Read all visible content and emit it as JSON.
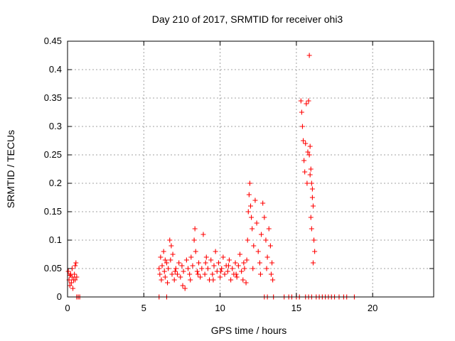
{
  "chart_data": {
    "type": "scatter",
    "title": "Day 210 of 2017, SRMTID for receiver ohi3",
    "xlabel": "GPS time / hours",
    "ylabel": "SRMTID / TECUs",
    "xlim": [
      0,
      24
    ],
    "ylim": [
      0,
      0.45
    ],
    "xticks": [
      0,
      5,
      10,
      15,
      20
    ],
    "xtick_labels": [
      "0",
      "5",
      "10",
      "15",
      "20"
    ],
    "yticks": [
      0,
      0.05,
      0.1,
      0.15,
      0.2,
      0.25,
      0.3,
      0.35,
      0.4,
      0.45
    ],
    "ytick_labels": [
      "0",
      "0.05",
      "0.1",
      "0.15",
      "0.2",
      "0.25",
      "0.3",
      "0.35",
      "0.4",
      "0.45"
    ],
    "grid": true,
    "marker": "plus",
    "series": [
      {
        "name": "SRMTID",
        "color": "#ff0000",
        "points": [
          [
            0.05,
            0.045
          ],
          [
            0.1,
            0.03
          ],
          [
            0.15,
            0.02
          ],
          [
            0.2,
            0.04
          ],
          [
            0.25,
            0.025
          ],
          [
            0.3,
            0.035
          ],
          [
            0.35,
            0.015
          ],
          [
            0.4,
            0.03
          ],
          [
            0.45,
            0.04
          ],
          [
            0.5,
            0.055
          ],
          [
            0.55,
            0.06
          ],
          [
            0.6,
            0.035
          ],
          [
            0.5,
            0.03
          ],
          [
            0.3,
            0.05
          ],
          [
            0.15,
            0.038
          ],
          [
            0.6,
            0.0
          ],
          [
            0.7,
            0.0
          ],
          [
            0.8,
            0.0
          ],
          [
            6.0,
            0.05
          ],
          [
            6.05,
            0.04
          ],
          [
            6.1,
            0.07
          ],
          [
            6.15,
            0.03
          ],
          [
            6.2,
            0.055
          ],
          [
            6.3,
            0.08
          ],
          [
            6.35,
            0.045
          ],
          [
            6.4,
            0.035
          ],
          [
            6.5,
            0.06
          ],
          [
            6.55,
            0.025
          ],
          [
            6.6,
            0.05
          ],
          [
            6.7,
            0.1
          ],
          [
            6.75,
            0.065
          ],
          [
            6.8,
            0.09
          ],
          [
            6.85,
            0.04
          ],
          [
            6.9,
            0.075
          ],
          [
            7.0,
            0.03
          ],
          [
            7.1,
            0.05
          ],
          [
            7.2,
            0.04
          ],
          [
            7.3,
            0.06
          ],
          [
            7.4,
            0.035
          ],
          [
            7.5,
            0.055
          ],
          [
            7.6,
            0.045
          ],
          [
            7.7,
            0.015
          ],
          [
            7.8,
            0.065
          ],
          [
            7.9,
            0.05
          ],
          [
            8.0,
            0.04
          ],
          [
            8.1,
            0.07
          ],
          [
            8.2,
            0.055
          ],
          [
            8.3,
            0.1
          ],
          [
            8.35,
            0.12
          ],
          [
            8.4,
            0.08
          ],
          [
            8.5,
            0.045
          ],
          [
            8.6,
            0.06
          ],
          [
            8.7,
            0.035
          ],
          [
            8.8,
            0.05
          ],
          [
            8.9,
            0.11
          ],
          [
            9.0,
            0.04
          ],
          [
            9.1,
            0.07
          ],
          [
            9.2,
            0.05
          ],
          [
            9.3,
            0.03
          ],
          [
            9.4,
            0.065
          ],
          [
            9.5,
            0.04
          ],
          [
            9.6,
            0.055
          ],
          [
            9.7,
            0.08
          ],
          [
            9.8,
            0.045
          ],
          [
            9.9,
            0.06
          ],
          [
            10.0,
            0.035
          ],
          [
            10.1,
            0.05
          ],
          [
            10.2,
            0.07
          ],
          [
            10.3,
            0.04
          ],
          [
            10.4,
            0.055
          ],
          [
            10.5,
            0.045
          ],
          [
            10.6,
            0.065
          ],
          [
            10.7,
            0.03
          ],
          [
            10.8,
            0.05
          ],
          [
            10.9,
            0.04
          ],
          [
            11.0,
            0.06
          ],
          [
            11.1,
            0.035
          ],
          [
            11.2,
            0.055
          ],
          [
            11.3,
            0.075
          ],
          [
            11.4,
            0.045
          ],
          [
            11.5,
            0.03
          ],
          [
            11.6,
            0.05
          ],
          [
            11.7,
            0.025
          ],
          [
            11.75,
            0.065
          ],
          [
            11.8,
            0.1
          ],
          [
            11.85,
            0.15
          ],
          [
            11.9,
            0.18
          ],
          [
            11.95,
            0.2
          ],
          [
            12.0,
            0.16
          ],
          [
            12.05,
            0.14
          ],
          [
            12.1,
            0.12
          ],
          [
            12.2,
            0.09
          ],
          [
            12.3,
            0.17
          ],
          [
            12.4,
            0.13
          ],
          [
            12.5,
            0.08
          ],
          [
            12.6,
            0.06
          ],
          [
            12.7,
            0.11
          ],
          [
            12.8,
            0.165
          ],
          [
            12.9,
            0.14
          ],
          [
            13.0,
            0.1
          ],
          [
            13.1,
            0.07
          ],
          [
            13.2,
            0.12
          ],
          [
            13.3,
            0.09
          ],
          [
            13.4,
            0.06
          ],
          [
            13.45,
            0.03
          ],
          [
            6.4,
            0.065
          ],
          [
            7.05,
            0.045
          ],
          [
            7.55,
            0.02
          ],
          [
            8.05,
            0.03
          ],
          [
            8.55,
            0.04
          ],
          [
            9.05,
            0.06
          ],
          [
            9.55,
            0.03
          ],
          [
            10.05,
            0.045
          ],
          [
            10.55,
            0.055
          ],
          [
            11.05,
            0.04
          ],
          [
            11.55,
            0.06
          ],
          [
            12.15,
            0.05
          ],
          [
            12.65,
            0.04
          ],
          [
            13.05,
            0.05
          ],
          [
            13.35,
            0.04
          ],
          [
            6.0,
            0.0
          ],
          [
            6.5,
            0.0
          ],
          [
            12.9,
            0.0
          ],
          [
            13.1,
            0.0
          ],
          [
            13.5,
            0.0
          ],
          [
            14.2,
            0.0
          ],
          [
            14.5,
            0.0
          ],
          [
            14.7,
            0.0
          ],
          [
            15.0,
            0.0
          ],
          [
            15.2,
            0.0
          ],
          [
            15.3,
            0.345
          ],
          [
            15.35,
            0.325
          ],
          [
            15.4,
            0.3
          ],
          [
            15.45,
            0.275
          ],
          [
            15.5,
            0.24
          ],
          [
            15.55,
            0.22
          ],
          [
            15.6,
            0.27
          ],
          [
            15.65,
            0.34
          ],
          [
            15.7,
            0.2
          ],
          [
            15.75,
            0.255
          ],
          [
            15.8,
            0.345
          ],
          [
            15.85,
            0.425
          ],
          [
            15.9,
            0.265
          ],
          [
            15.95,
            0.225
          ],
          [
            16.0,
            0.2
          ],
          [
            16.05,
            0.175
          ],
          [
            16.1,
            0.16
          ],
          [
            16.15,
            0.1
          ],
          [
            16.2,
            0.08
          ],
          [
            15.95,
            0.14
          ],
          [
            16.0,
            0.12
          ],
          [
            15.85,
            0.25
          ],
          [
            15.9,
            0.215
          ],
          [
            16.05,
            0.19
          ],
          [
            16.1,
            0.06
          ],
          [
            15.6,
            0.0
          ],
          [
            15.8,
            0.0
          ],
          [
            16.0,
            0.0
          ],
          [
            16.3,
            0.0
          ],
          [
            16.5,
            0.0
          ],
          [
            16.7,
            0.0
          ],
          [
            16.9,
            0.0
          ],
          [
            17.1,
            0.0
          ],
          [
            17.3,
            0.0
          ],
          [
            17.5,
            0.0
          ],
          [
            17.8,
            0.0
          ],
          [
            18.1,
            0.0
          ],
          [
            18.3,
            0.0
          ],
          [
            18.8,
            0.0
          ]
        ]
      }
    ]
  }
}
